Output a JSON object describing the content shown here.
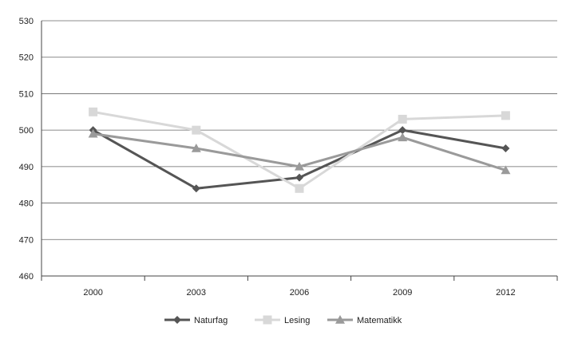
{
  "chart_data": {
    "type": "line",
    "title": "",
    "xlabel": "",
    "ylabel": "",
    "categories": [
      "2000",
      "2003",
      "2006",
      "2009",
      "2012"
    ],
    "ylim": [
      460,
      530
    ],
    "yticks": [
      460,
      470,
      480,
      490,
      500,
      510,
      520,
      530
    ],
    "grid": true,
    "legend_position": "bottom",
    "series": [
      {
        "name": "Naturfag",
        "values": [
          500,
          484,
          487,
          500,
          495
        ],
        "color": "#555555",
        "marker": "diamond"
      },
      {
        "name": "Lesing",
        "values": [
          505,
          500,
          484,
          503,
          504
        ],
        "color": "#d8d8d8",
        "marker": "square"
      },
      {
        "name": "Matematikk",
        "values": [
          499,
          495,
          490,
          498,
          489
        ],
        "color": "#9a9a9a",
        "marker": "triangle"
      }
    ]
  }
}
